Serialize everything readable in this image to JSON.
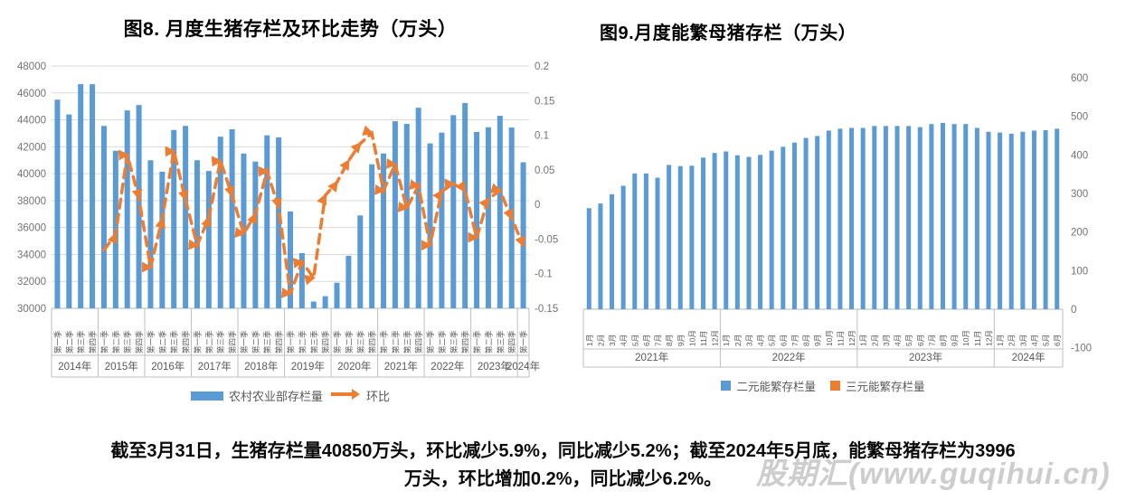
{
  "watermark": {
    "text": "股期汇(www.guqihui.cn)"
  },
  "footer": {
    "line1": "截至3月31日，生猪存栏量40850万头，环比减少5.9%，同比减少5.2%；截至2024年5月底，能繁母猪存栏为3996",
    "line2": "万头，环比增加0.2%，同比减少6.2%。"
  },
  "colors": {
    "bar_blue": "#5B9BD5",
    "orange": "#ED7D31",
    "grid": "#D9D9D9",
    "box_line": "#BFBFBF",
    "axis_text": "#737373",
    "category_text": "#595959"
  },
  "chart_data": [
    {
      "id": "fig8",
      "type": "bar+line",
      "title": "图8. 月度生猪存栏及环比走势（万头）",
      "y_left": {
        "min": 30000,
        "max": 48000,
        "step": 2000
      },
      "y_right": {
        "min": -0.15,
        "max": 0.2,
        "step": 0.05
      },
      "grid": true,
      "legend_position": "bottom",
      "x": {
        "quarter_labels": [
          "第一季",
          "第二季",
          "第三季",
          "第四季"
        ],
        "year_groups": [
          {
            "label": "2014年",
            "count": 4
          },
          {
            "label": "2015年",
            "count": 4
          },
          {
            "label": "2016年",
            "count": 4
          },
          {
            "label": "2017年",
            "count": 4
          },
          {
            "label": "2018年",
            "count": 4
          },
          {
            "label": "2019年",
            "count": 4
          },
          {
            "label": "2020年",
            "count": 4
          },
          {
            "label": "2021年",
            "count": 4
          },
          {
            "label": "2022年",
            "count": 4
          },
          {
            "label": "2023年",
            "count": 4
          },
          {
            "label": "2024年",
            "count": 1
          }
        ]
      },
      "series": [
        {
          "name": "农村农业部存栏量",
          "type": "bar",
          "axis": "left",
          "values": [
            45500,
            44400,
            46650,
            46650,
            43550,
            41700,
            44700,
            45100,
            41000,
            40150,
            43250,
            43550,
            41000,
            40200,
            42750,
            43300,
            41500,
            40900,
            42850,
            42700,
            37200,
            34100,
            30500,
            30900,
            31900,
            33900,
            36900,
            40700,
            41500,
            43900,
            43700,
            44900,
            42250,
            43050,
            44350,
            45250,
            43100,
            43450,
            44300,
            43430,
            40850
          ]
        },
        {
          "name": "环比",
          "type": "line-arrow-dashed",
          "axis": "right",
          "values": [
            null,
            null,
            null,
            null,
            -0.066,
            -0.043,
            0.072,
            0.009,
            -0.091,
            -0.021,
            0.077,
            0.007,
            -0.059,
            -0.019,
            0.063,
            0.013,
            -0.042,
            -0.014,
            0.048,
            -0.004,
            -0.129,
            -0.083,
            -0.106,
            0.013,
            0.032,
            0.063,
            0.088,
            0.103,
            0.02,
            0.058,
            -0.005,
            0.027,
            -0.059,
            0.019,
            0.03,
            0.02,
            -0.048,
            0.008,
            0.02,
            -0.02,
            -0.059
          ]
        }
      ]
    },
    {
      "id": "fig9",
      "type": "bar",
      "title": "图9.月度能繁母猪存栏（万头）",
      "y_right_axis": {
        "min": -100,
        "max": 600,
        "step": 100
      },
      "grid": false,
      "legend_position": "bottom",
      "x": {
        "month_labels": [
          "1月",
          "2月",
          "3月",
          "4月",
          "5月",
          "6月",
          "7月",
          "8月",
          "9月",
          "10月",
          "11月",
          "12月"
        ],
        "year_groups": [
          {
            "label": "2021年",
            "count": 12
          },
          {
            "label": "2022年",
            "count": 12
          },
          {
            "label": "2023年",
            "count": 12
          },
          {
            "label": "2024年",
            "count": 6
          }
        ]
      },
      "series": [
        {
          "name": "二元能繁存栏量",
          "type": "bar",
          "values": [
            262,
            274,
            298,
            320,
            352,
            352,
            341,
            374,
            371,
            372,
            393,
            405,
            409,
            399,
            395,
            400,
            411,
            421,
            432,
            444,
            449,
            463,
            468,
            470,
            470,
            475,
            475,
            475,
            475,
            472,
            480,
            483,
            480,
            480,
            470,
            460,
            458,
            455,
            460,
            463,
            464,
            468
          ]
        },
        {
          "name": "三元能繁存栏量",
          "type": "bar",
          "values": []
        }
      ]
    }
  ]
}
